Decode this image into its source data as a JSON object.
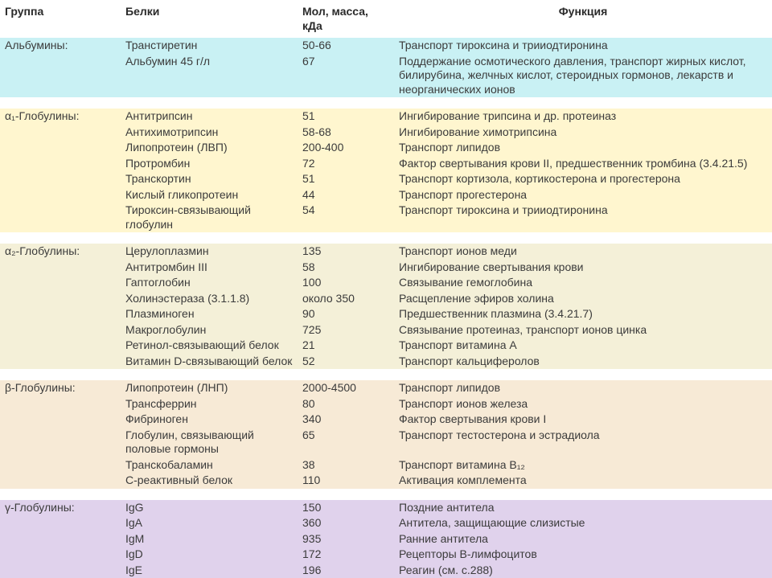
{
  "columns": {
    "group": "Группа",
    "protein": "Белки",
    "mass": "Мол, масса, кДа",
    "function": "Функция"
  },
  "col_widths": [
    "150px",
    "220px",
    "120px",
    "auto"
  ],
  "header_bg": "#ffffff",
  "font_family": "Arial, Helvetica, sans-serif",
  "base_font_size": 14,
  "text_color": "#3b3b3b",
  "sections": [
    {
      "group": "Альбумины:",
      "bg": "#c9f1f4",
      "rows": [
        {
          "protein": "Транстиретин",
          "mass": "50-66",
          "func": "Транспорт тироксина и трииодтиронина"
        },
        {
          "protein": "Альбумин 45 г/л",
          "mass": "67",
          "func": "Поддержание осмотического давления, транспорт жирных кислот, билирубина, желчных кислот, стероидных гормонов, лекарств и неорганических ионов"
        }
      ]
    },
    {
      "group": "α₁-Глобулины:",
      "bg": "#fff6cf",
      "rows": [
        {
          "protein": "Антитрипсин",
          "mass": "51",
          "func": "Ингибирование трипсина и др. протеиназ"
        },
        {
          "protein": "Антихимотрипсин",
          "mass": "58-68",
          "func": "Ингибирование химотрипсина"
        },
        {
          "protein": "Липопротеин (ЛВП)",
          "mass": "200-400",
          "func": "Транспорт липидов"
        },
        {
          "protein": "Протромбин",
          "mass": "72",
          "func": "Фактор свертывания крови II, предшественник тромбина (3.4.21.5)"
        },
        {
          "protein": "Транскортин",
          "mass": "51",
          "func": "Транспорт кортизола, кортикостерона и прогестерона"
        },
        {
          "protein": "Кислый гликопротеин",
          "mass": "44",
          "func": "Транспорт прогестерона"
        },
        {
          "protein": "Тироксин-связывающий глобулин",
          "mass": "54",
          "func": "Транспорт тироксина и трииодтиронина"
        }
      ]
    },
    {
      "group": "α₂-Глобулины:",
      "bg": "#f4f0d8",
      "rows": [
        {
          "protein": "Церулоплазмин",
          "mass": "135",
          "func": "Транспорт ионов меди"
        },
        {
          "protein": "Антитромбин III",
          "mass": "58",
          "func": "Ингибирование свертывания крови"
        },
        {
          "protein": "Гаптоглобин",
          "mass": "100",
          "func": "Связывание гемоглобина"
        },
        {
          "protein": "Холинэстераза (3.1.1.8)",
          "mass": "около 350",
          "func": "Расщепление эфиров холина"
        },
        {
          "protein": "Плазминоген",
          "mass": "90",
          "func": "Предшественник плазмина (3.4.21.7)"
        },
        {
          "protein": "Макроглобулин",
          "mass": "725",
          "func": "Связывание протеиназ, транспорт ионов цинка"
        },
        {
          "protein": "Ретинол-связывающий белок",
          "mass": "21",
          "func": "Транспорт витамина А"
        },
        {
          "protein": "Витамин D-связывающий белок",
          "mass": "52",
          "func": "Транспорт кальциферолов"
        }
      ]
    },
    {
      "group": "β-Глобулины:",
      "bg": "#f7ead6",
      "rows": [
        {
          "protein": "Липопротеин (ЛНП)",
          "mass": "2000-4500",
          "func": "Транспорт липидов"
        },
        {
          "protein": "Трансферрин",
          "mass": "80",
          "func": "Транспорт ионов железа"
        },
        {
          "protein": "Фибриноген",
          "mass": "340",
          "func": "Фактор свертывания крови I"
        },
        {
          "protein": "Глобулин, связывающий половые гормоны",
          "mass": "65",
          "func": "Транспорт тестостерона и эстрадиола"
        },
        {
          "protein": "Транскобаламин",
          "mass": "38",
          "func": "Транспорт витамина В₁₂"
        },
        {
          "protein": "С-реактивный белок",
          "mass": "110",
          "func": "Активация комплемента"
        }
      ]
    },
    {
      "group": "γ-Глобулины:",
      "bg": "#e0d2ec",
      "rows": [
        {
          "protein": "IgG",
          "mass": "150",
          "func": "Поздние антитела"
        },
        {
          "protein": "IgA",
          "mass": "360",
          "func": "Антитела, защищающие слизистые"
        },
        {
          "protein": "IgM",
          "mass": "935",
          "func": "Ранние антитела"
        },
        {
          "protein": "IgD",
          "mass": "172",
          "func": "Рецепторы В-лимфоцитов"
        },
        {
          "protein": "IgE",
          "mass": "196",
          "func": "Реагин (см. с.288)"
        }
      ]
    }
  ]
}
